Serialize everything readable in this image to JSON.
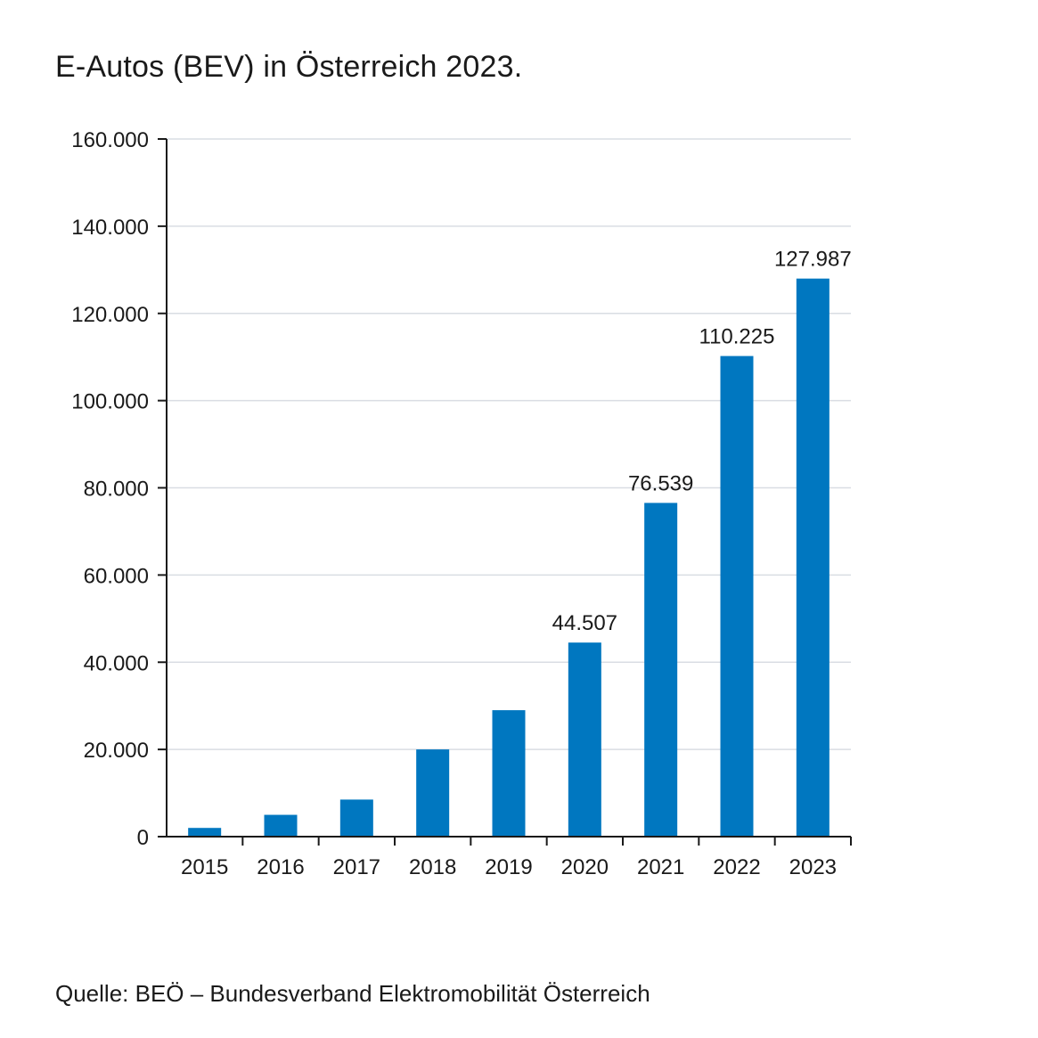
{
  "title": "E-Autos (BEV) in Österreich 2023.",
  "source": "Quelle: BEÖ – Bundesverband Elektromobilität Österreich",
  "colors": {
    "bar": "#0077c0",
    "grid": "#d9dde3",
    "axis": "#1a1a1a"
  },
  "chart_data": {
    "type": "bar",
    "title": "E-Autos (BEV) in Österreich 2023.",
    "xlabel": "",
    "ylabel": "",
    "categories": [
      "2015",
      "2016",
      "2017",
      "2018",
      "2019",
      "2020",
      "2021",
      "2022",
      "2023"
    ],
    "values": [
      2000,
      5000,
      8500,
      20000,
      29000,
      44507,
      76539,
      110225,
      127987
    ],
    "data_labels": [
      "",
      "",
      "",
      "",
      "",
      "44.507",
      "76.539",
      "110.225",
      "127.987"
    ],
    "ylim": [
      0,
      160000
    ],
    "yticks": [
      0,
      20000,
      40000,
      60000,
      80000,
      100000,
      120000,
      140000,
      160000
    ],
    "ytick_labels": [
      "0",
      "20.000",
      "40.000",
      "60.000",
      "80.000",
      "100.000",
      "120.000",
      "140.000",
      "160.000"
    ],
    "grid": true,
    "legend": "none"
  }
}
